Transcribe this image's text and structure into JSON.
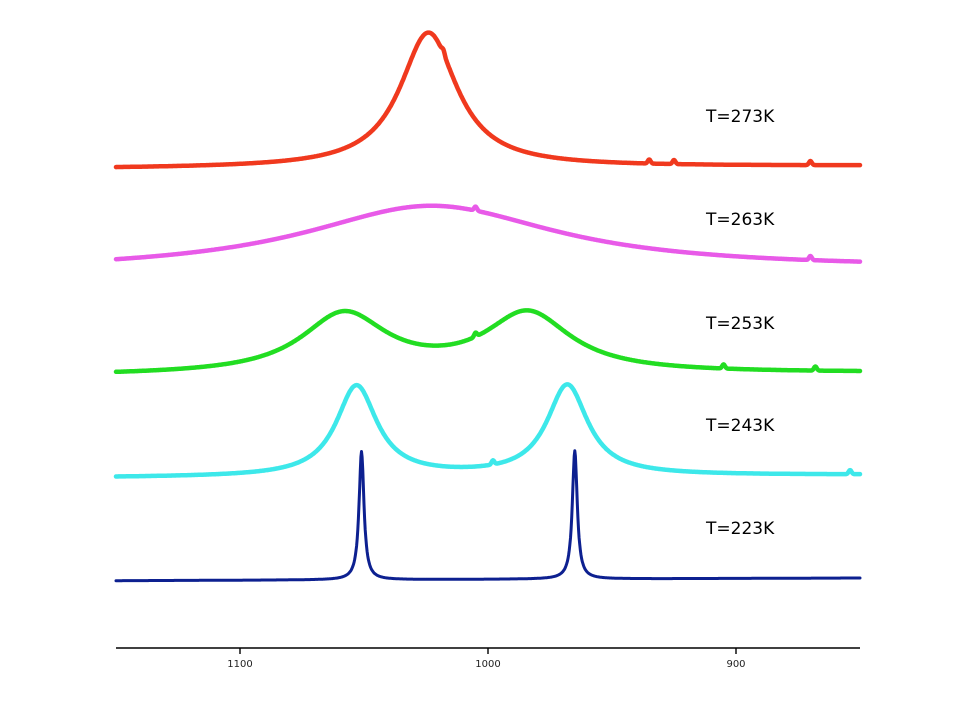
{
  "chart_data": {
    "type": "line",
    "title": "",
    "xlabel": "",
    "ylabel": "",
    "x_axis": {
      "min": 1150,
      "max": 850,
      "reversed": true,
      "ticks": [
        1100,
        1000,
        900
      ],
      "tick_labels": [
        "1100",
        "1000",
        "900"
      ]
    },
    "y_axis": {
      "visible": false
    },
    "grid": false,
    "legend": "none",
    "series": [
      {
        "name": "T=273K",
        "color": "#f0391e",
        "baseline": 0,
        "peaks": [
          {
            "center": 1024,
            "height": 1.0,
            "width": 14
          }
        ],
        "noise_spikes": [
          1018,
          925,
          935,
          870
        ]
      },
      {
        "name": "T=263K",
        "color": "#e85ae8",
        "baseline": 0,
        "peaks": [
          {
            "center": 1023,
            "height": 0.48,
            "width": 62
          }
        ],
        "noise_spikes": [
          1005,
          870
        ]
      },
      {
        "name": "T=253K",
        "color": "#22dd22",
        "baseline": 0,
        "peaks": [
          {
            "center": 1058,
            "height": 0.44,
            "width": 21
          },
          {
            "center": 984,
            "height": 0.44,
            "width": 21
          }
        ],
        "noise_spikes": [
          1005,
          905,
          868
        ]
      },
      {
        "name": "T=243K",
        "color": "#3de8ea",
        "baseline": 0,
        "peaks": [
          {
            "center": 1053,
            "height": 0.67,
            "width": 10
          },
          {
            "center": 968,
            "height": 0.67,
            "width": 10
          }
        ],
        "noise_spikes": [
          998,
          854
        ]
      },
      {
        "name": "T=223K",
        "color": "#0d2090",
        "baseline": 0,
        "peaks": [
          {
            "center": 1051,
            "height": 0.95,
            "width": 1.2
          },
          {
            "center": 965,
            "height": 0.95,
            "width": 1.2
          }
        ],
        "noise_spikes": []
      }
    ]
  }
}
